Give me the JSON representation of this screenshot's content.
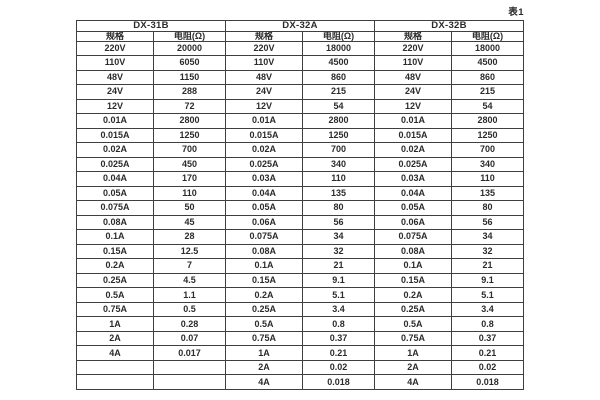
{
  "page": {
    "caption": "表1"
  },
  "table": {
    "groups": [
      {
        "name": "DX-31B",
        "col_headers": [
          "规格",
          "电阻(Ω)"
        ],
        "rows": [
          [
            "220V",
            "20000"
          ],
          [
            "110V",
            "6050"
          ],
          [
            "48V",
            "1150"
          ],
          [
            "24V",
            "288"
          ],
          [
            "12V",
            "72"
          ],
          [
            "0.01A",
            "2800"
          ],
          [
            "0.015A",
            "1250"
          ],
          [
            "0.02A",
            "700"
          ],
          [
            "0.025A",
            "450"
          ],
          [
            "0.04A",
            "170"
          ],
          [
            "0.05A",
            "110"
          ],
          [
            "0.075A",
            "50"
          ],
          [
            "0.08A",
            "45"
          ],
          [
            "0.1A",
            "28"
          ],
          [
            "0.15A",
            "12.5"
          ],
          [
            "0.2A",
            "7"
          ],
          [
            "0.25A",
            "4.5"
          ],
          [
            "0.5A",
            "1.1"
          ],
          [
            "0.75A",
            "0.5"
          ],
          [
            "1A",
            "0.28"
          ],
          [
            "2A",
            "0.07"
          ],
          [
            "4A",
            "0.017"
          ],
          [
            "",
            ""
          ],
          [
            "",
            ""
          ]
        ]
      },
      {
        "name": "DX-32A",
        "col_headers": [
          "规格",
          "电阻(Ω)"
        ],
        "rows": [
          [
            "220V",
            "18000"
          ],
          [
            "110V",
            "4500"
          ],
          [
            "48V",
            "860"
          ],
          [
            "24V",
            "215"
          ],
          [
            "12V",
            "54"
          ],
          [
            "0.01A",
            "2800"
          ],
          [
            "0.015A",
            "1250"
          ],
          [
            "0.02A",
            "700"
          ],
          [
            "0.025A",
            "340"
          ],
          [
            "0.03A",
            "110"
          ],
          [
            "0.04A",
            "135"
          ],
          [
            "0.05A",
            "80"
          ],
          [
            "0.06A",
            "56"
          ],
          [
            "0.075A",
            "34"
          ],
          [
            "0.08A",
            "32"
          ],
          [
            "0.1A",
            "21"
          ],
          [
            "0.15A",
            "9.1"
          ],
          [
            "0.2A",
            "5.1"
          ],
          [
            "0.25A",
            "3.4"
          ],
          [
            "0.5A",
            "0.8"
          ],
          [
            "0.75A",
            "0.37"
          ],
          [
            "1A",
            "0.21"
          ],
          [
            "2A",
            "0.02"
          ],
          [
            "4A",
            "0.018"
          ]
        ]
      },
      {
        "name": "DX-32B",
        "col_headers": [
          "规格",
          "电阻(Ω)"
        ],
        "rows": [
          [
            "220V",
            "18000"
          ],
          [
            "110V",
            "4500"
          ],
          [
            "48V",
            "860"
          ],
          [
            "24V",
            "215"
          ],
          [
            "12V",
            "54"
          ],
          [
            "0.01A",
            "2800"
          ],
          [
            "0.015A",
            "1250"
          ],
          [
            "0.02A",
            "700"
          ],
          [
            "0.025A",
            "340"
          ],
          [
            "0.03A",
            "110"
          ],
          [
            "0.04A",
            "135"
          ],
          [
            "0.05A",
            "80"
          ],
          [
            "0.06A",
            "56"
          ],
          [
            "0.075A",
            "34"
          ],
          [
            "0.08A",
            "32"
          ],
          [
            "0.1A",
            "21"
          ],
          [
            "0.15A",
            "9.1"
          ],
          [
            "0.2A",
            "5.1"
          ],
          [
            "0.25A",
            "3.4"
          ],
          [
            "0.5A",
            "0.8"
          ],
          [
            "0.75A",
            "0.37"
          ],
          [
            "1A",
            "0.21"
          ],
          [
            "2A",
            "0.02"
          ],
          [
            "4A",
            "0.018"
          ]
        ]
      }
    ]
  }
}
